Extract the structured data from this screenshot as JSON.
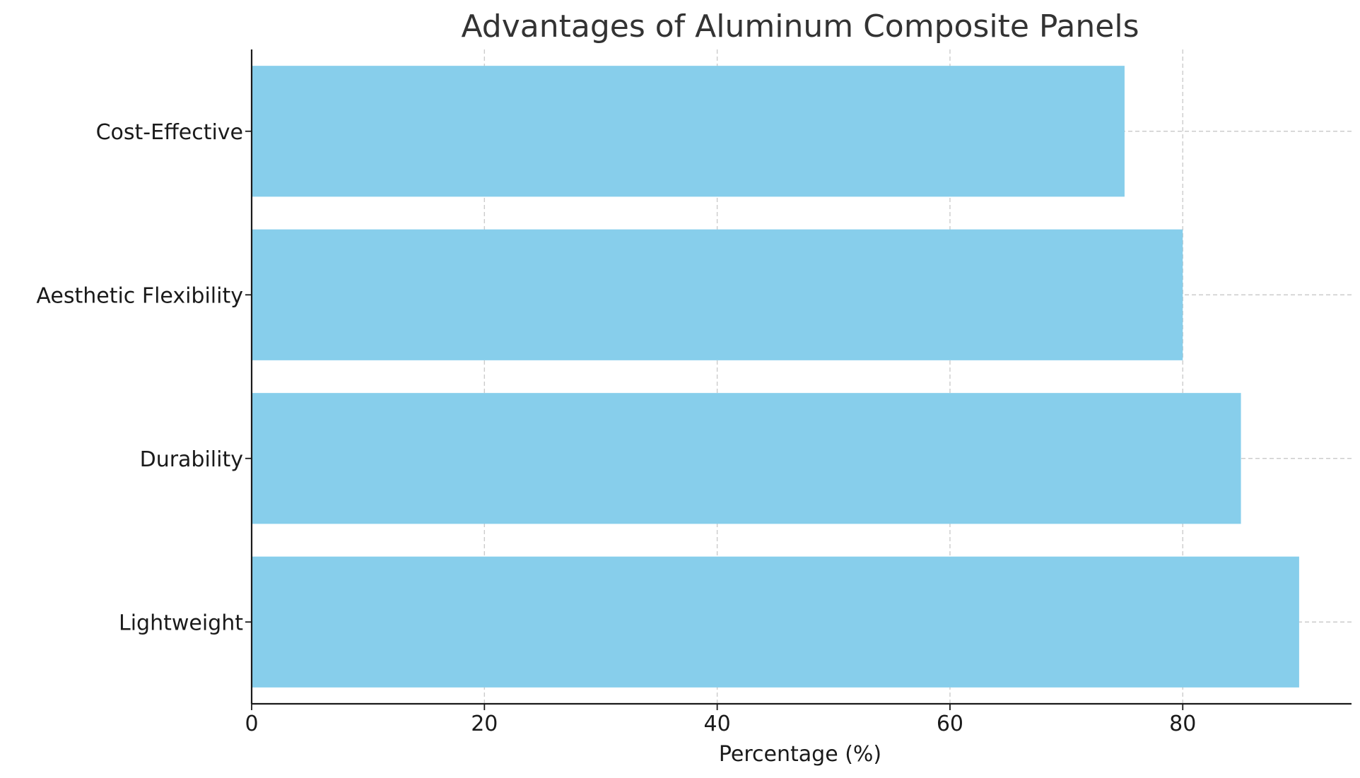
{
  "chart_data": {
    "type": "bar",
    "orientation": "horizontal",
    "title": "Advantages of Aluminum Composite Panels",
    "xlabel": "Percentage (%)",
    "ylabel": "",
    "categories": [
      "Lightweight",
      "Durability",
      "Aesthetic Flexibility",
      "Cost-Effective"
    ],
    "values": [
      90,
      85,
      80,
      75
    ],
    "xlim": [
      0,
      94.5
    ],
    "xticks": [
      0,
      20,
      40,
      60,
      80
    ],
    "grid": true,
    "bar_color": "#87CEEB"
  }
}
